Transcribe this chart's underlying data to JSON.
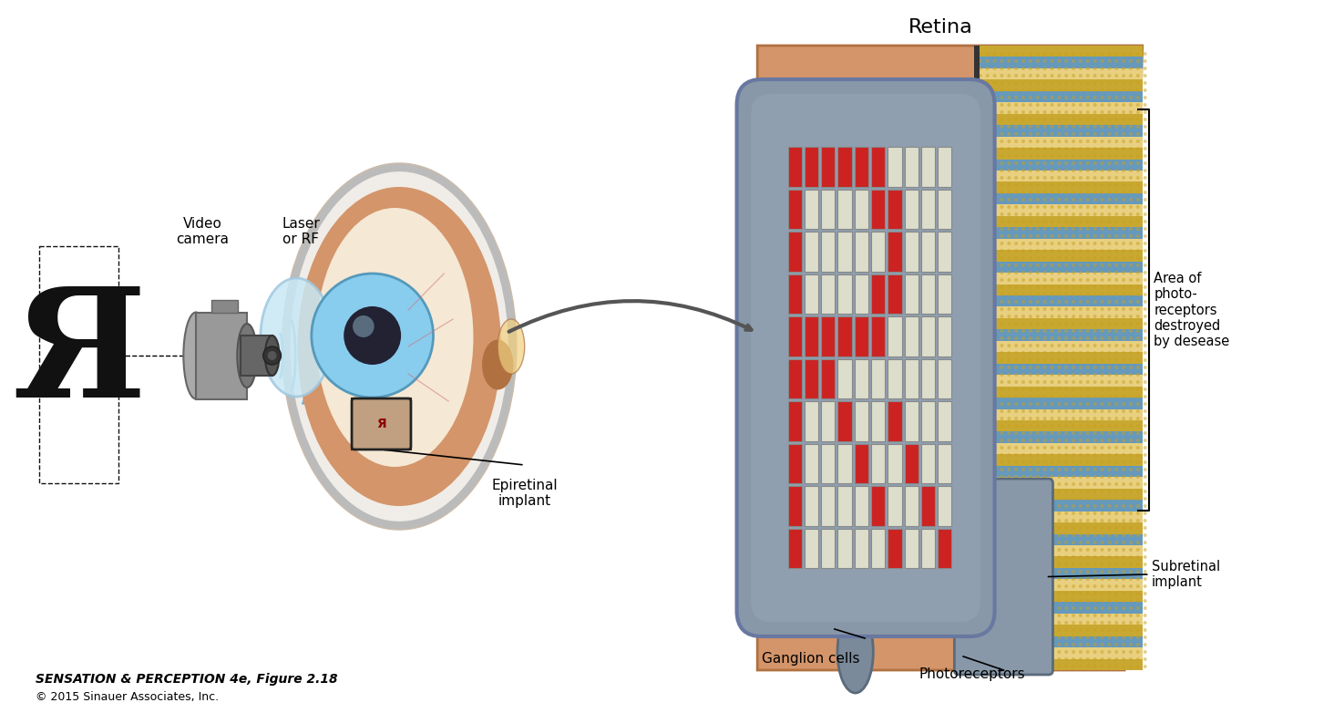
{
  "bg_color": "#ffffff",
  "title_text": "Retina",
  "caption_line1": "SENSATION & PERCEPTION 4e, Figure 2.18",
  "caption_line2": "© 2015 Sinauer Associates, Inc.",
  "labels": {
    "video_camera": "Video\ncamera",
    "laser_rf": "Laser\nor RF",
    "epiretinal": "Epiretinal\nimplant",
    "area_of": "Area of\nphoto-\nreceptors\ndestroyed\nby desease",
    "subretinal": "Subretinal\nimplant",
    "ganglion": "Ganglion cells",
    "photoreceptors": "Photoreceptors"
  },
  "colors": {
    "skin": "#D4956A",
    "skin_dark": "#B07040",
    "skin_light": "#E8B080",
    "gray_implant": "#8090A0",
    "gray_implant_light": "#9AAABB",
    "gray_implant_dark": "#5A6A7A",
    "blue_iris": "#88CCEE",
    "sclera": "#F0EDE8",
    "red_pixel": "#CC2222",
    "white_pixel": "#DDDDCC",
    "stripe_gold": "#C8A030",
    "stripe_blue": "#4488AA",
    "stripe_pink": "#D8A0A0",
    "black": "#111111",
    "wave_blue": "#66AACC",
    "cam_gray": "#888888",
    "cam_dark": "#444444"
  },
  "R_pattern": [
    [
      1,
      1,
      1,
      1,
      1,
      1,
      0,
      0,
      0,
      0
    ],
    [
      1,
      0,
      0,
      0,
      0,
      1,
      1,
      0,
      0,
      0
    ],
    [
      1,
      0,
      0,
      0,
      0,
      0,
      1,
      0,
      0,
      0
    ],
    [
      1,
      0,
      0,
      0,
      0,
      1,
      1,
      0,
      0,
      0
    ],
    [
      1,
      1,
      1,
      1,
      1,
      1,
      0,
      0,
      0,
      0
    ],
    [
      1,
      1,
      1,
      0,
      0,
      0,
      0,
      0,
      0,
      0
    ],
    [
      1,
      0,
      0,
      1,
      0,
      0,
      1,
      0,
      0,
      0
    ],
    [
      1,
      0,
      0,
      0,
      1,
      0,
      0,
      1,
      0,
      0
    ],
    [
      1,
      0,
      0,
      0,
      0,
      1,
      0,
      0,
      1,
      0
    ],
    [
      1,
      0,
      0,
      0,
      0,
      0,
      1,
      0,
      0,
      1
    ]
  ]
}
